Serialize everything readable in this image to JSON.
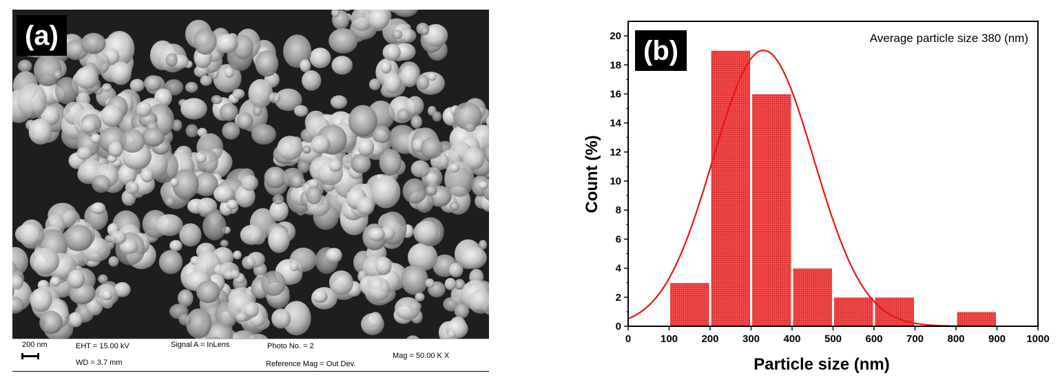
{
  "panel_a": {
    "tag": "(a)",
    "scale_label": "200 nm",
    "eht": "EHT = 15.00 kV",
    "wd": "WD =  3.7 mm",
    "signal": "Signal A = InLens",
    "photo": "Photo No. = 2",
    "ref_mag": "Reference Mag = Out Dev.",
    "mag": "Mag =  50.00 K X"
  },
  "chart_data": {
    "type": "bar",
    "panel_tag": "(b)",
    "annotation": "Average particle size 380 (nm)",
    "xlabel": "Particle size (nm)",
    "ylabel": "Count (%)",
    "xlim": [
      0,
      1000
    ],
    "ylim": [
      0,
      21
    ],
    "xticks": [
      0,
      100,
      200,
      300,
      400,
      500,
      600,
      700,
      800,
      900,
      1000
    ],
    "yticks": [
      0,
      2,
      4,
      6,
      8,
      10,
      12,
      14,
      16,
      18,
      20
    ],
    "bins": [
      {
        "start": 100,
        "end": 200,
        "value": 3
      },
      {
        "start": 200,
        "end": 300,
        "value": 19
      },
      {
        "start": 300,
        "end": 400,
        "value": 16
      },
      {
        "start": 400,
        "end": 500,
        "value": 4
      },
      {
        "start": 500,
        "end": 600,
        "value": 2
      },
      {
        "start": 600,
        "end": 700,
        "value": 2
      },
      {
        "start": 700,
        "end": 800,
        "value": 0
      },
      {
        "start": 800,
        "end": 900,
        "value": 1
      }
    ],
    "fit": {
      "type": "gaussian",
      "center": 330,
      "sigma": 123,
      "amplitude": 19
    },
    "colors": {
      "bar_fill": "#f04848",
      "bar_dot": "#b01010",
      "fit_line": "#ee1111"
    },
    "grid": false
  }
}
